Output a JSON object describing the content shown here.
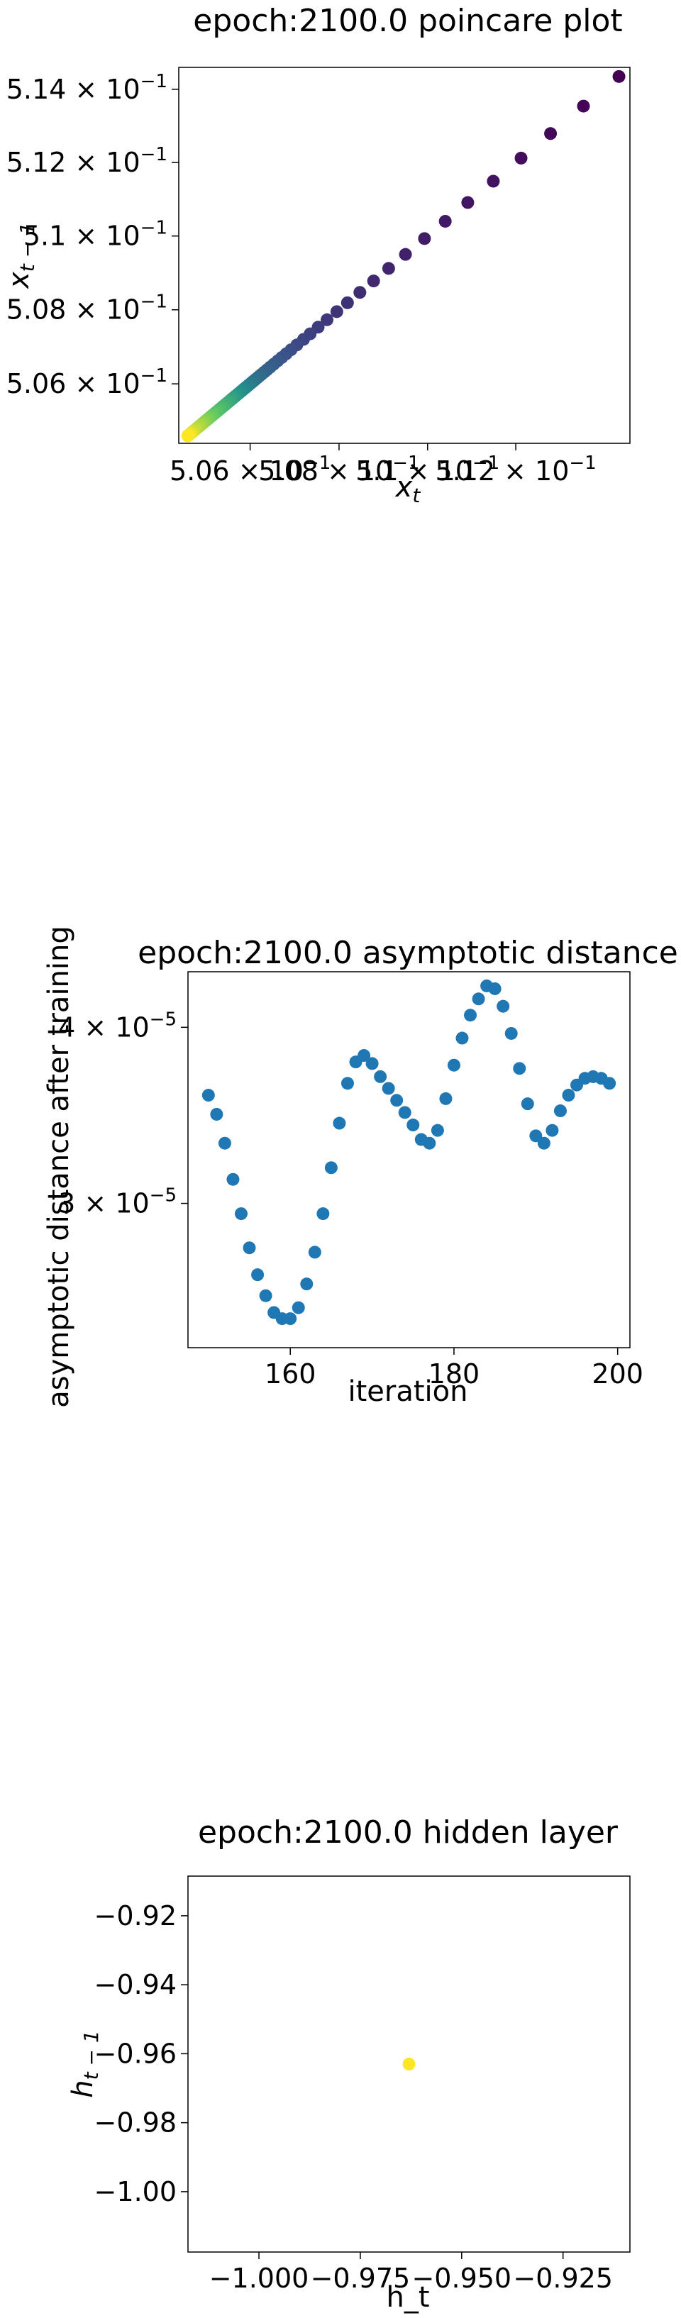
{
  "colors": {
    "viridis_start": "#440154",
    "viridis_mid": "#21918c",
    "viridis_end": "#fde725",
    "blue": "#1f77b4",
    "hidden_point": "#fde725"
  },
  "chart_data": [
    {
      "type": "scatter",
      "title": "epoch:2100.0 poincare plot",
      "xlabel": "x_t",
      "ylabel": "x_{t-1}",
      "scale": "log",
      "xlim": [
        0.5044,
        0.5146
      ],
      "ylim": [
        0.5044,
        0.5146
      ],
      "x_ticks": [
        {
          "value": 0.506,
          "label": "5.06 × 10"
        },
        {
          "value": 0.508,
          "label": "5.08 × 10"
        },
        {
          "value": 0.51,
          "label": "5.1 × 10"
        },
        {
          "value": 0.512,
          "label": "5.12 × 10"
        }
      ],
      "y_ticks": [
        {
          "value": 0.506,
          "label": "5.06 × 10"
        },
        {
          "value": 0.508,
          "label": "5.08 × 10"
        },
        {
          "value": 0.51,
          "label": "5.1 × 10"
        },
        {
          "value": 0.512,
          "label": "5.12 × 10"
        },
        {
          "value": 0.514,
          "label": "5.14 × 10"
        }
      ],
      "tick_exponent": "−1",
      "colormap": "viridis",
      "x": [
        0.51435,
        0.51354,
        0.51279,
        0.51212,
        0.51149,
        0.51091,
        0.5104,
        0.50993,
        0.5095,
        0.50912,
        0.50878,
        0.50847,
        0.50819,
        0.50795,
        0.50773,
        0.50753,
        0.50735,
        0.5072,
        0.50705,
        0.50692,
        0.50681,
        0.50671,
        0.50662,
        0.50653,
        0.50645,
        0.50638,
        0.50632,
        0.50626,
        0.50621,
        0.50616,
        0.50611,
        0.50607,
        0.50603,
        0.50599,
        0.50596,
        0.50592,
        0.50589,
        0.50586,
        0.50583,
        0.5058,
        0.50577,
        0.50574,
        0.50571,
        0.50568,
        0.50565,
        0.50562,
        0.50559,
        0.50556,
        0.50553,
        0.5055,
        0.50547,
        0.50544,
        0.50541,
        0.50538,
        0.50535,
        0.50532,
        0.50529,
        0.50526,
        0.50523,
        0.5052,
        0.50517,
        0.50514,
        0.50511,
        0.50508,
        0.50505,
        0.50502,
        0.50499,
        0.50496,
        0.50493,
        0.5049,
        0.50487,
        0.50484,
        0.50481,
        0.50478,
        0.50475,
        0.50472,
        0.5047,
        0.50468,
        0.50466,
        0.50464,
        0.50462,
        0.5046
      ],
      "y": [
        0.51435,
        0.51354,
        0.51279,
        0.51212,
        0.51149,
        0.51091,
        0.5104,
        0.50993,
        0.5095,
        0.50912,
        0.50878,
        0.50847,
        0.50819,
        0.50795,
        0.50773,
        0.50753,
        0.50735,
        0.5072,
        0.50705,
        0.50692,
        0.50681,
        0.50671,
        0.50662,
        0.50653,
        0.50645,
        0.50638,
        0.50632,
        0.50626,
        0.50621,
        0.50616,
        0.50611,
        0.50607,
        0.50603,
        0.50599,
        0.50596,
        0.50592,
        0.50589,
        0.50586,
        0.50583,
        0.5058,
        0.50577,
        0.50574,
        0.50571,
        0.50568,
        0.50565,
        0.50562,
        0.50559,
        0.50556,
        0.50553,
        0.5055,
        0.50547,
        0.50544,
        0.50541,
        0.50538,
        0.50535,
        0.50532,
        0.50529,
        0.50526,
        0.50523,
        0.5052,
        0.50517,
        0.50514,
        0.50511,
        0.50508,
        0.50505,
        0.50502,
        0.50499,
        0.50496,
        0.50493,
        0.5049,
        0.50487,
        0.50484,
        0.50481,
        0.50478,
        0.50475,
        0.50472,
        0.5047,
        0.50468,
        0.50466,
        0.50464,
        0.50462,
        0.5046
      ]
    },
    {
      "type": "scatter",
      "title": "epoch:2100.0 asymptotic distance",
      "xlabel": "iteration",
      "ylabel": "asymptotic distance after training",
      "yscale": "log",
      "xlim": [
        147.5,
        201.5
      ],
      "ylim": [
        2.37e-05,
        4.38e-05
      ],
      "x_ticks": [
        {
          "value": 160,
          "label": "160"
        },
        {
          "value": 180,
          "label": "180"
        },
        {
          "value": 200,
          "label": "200"
        }
      ],
      "y_ticks": [
        {
          "value": 3e-05,
          "label": "3 × 10"
        },
        {
          "value": 4e-05,
          "label": "4 × 10"
        }
      ],
      "tick_exponent": "−5",
      "x": [
        150,
        151,
        152,
        153,
        154,
        155,
        156,
        157,
        158,
        159,
        160,
        161,
        162,
        163,
        164,
        165,
        166,
        167,
        168,
        169,
        170,
        171,
        172,
        173,
        174,
        175,
        176,
        177,
        178,
        179,
        180,
        181,
        182,
        183,
        184,
        185,
        186,
        187,
        188,
        189,
        190,
        191,
        192,
        193,
        194,
        195,
        196,
        197,
        198,
        199
      ],
      "y": [
        3.58e-05,
        3.47e-05,
        3.31e-05,
        3.12e-05,
        2.95e-05,
        2.79e-05,
        2.67e-05,
        2.58e-05,
        2.51e-05,
        2.485e-05,
        2.485e-05,
        2.53e-05,
        2.63e-05,
        2.77e-05,
        2.95e-05,
        3.18e-05,
        3.42e-05,
        3.65e-05,
        3.78e-05,
        3.82e-05,
        3.77e-05,
        3.69e-05,
        3.62e-05,
        3.55e-05,
        3.48e-05,
        3.41e-05,
        3.33e-05,
        3.31e-05,
        3.38e-05,
        3.56e-05,
        3.76e-05,
        3.93e-05,
        4.08e-05,
        4.19e-05,
        4.28e-05,
        4.26e-05,
        4.14e-05,
        3.96e-05,
        3.74e-05,
        3.53e-05,
        3.35e-05,
        3.31e-05,
        3.38e-05,
        3.49e-05,
        3.58e-05,
        3.64e-05,
        3.68e-05,
        3.69e-05,
        3.68e-05,
        3.65e-05
      ]
    },
    {
      "type": "scatter",
      "title": "epoch:2100.0 hidden layer",
      "xlabel": "h_t",
      "ylabel": "h_{t-1}",
      "xlim": [
        -1.0175,
        -0.9085
      ],
      "ylim": [
        -1.0175,
        -0.9085
      ],
      "x_ticks": [
        {
          "value": -1.0,
          "label": "−1.000"
        },
        {
          "value": -0.975,
          "label": "−0.975"
        },
        {
          "value": -0.95,
          "label": "−0.950"
        },
        {
          "value": -0.925,
          "label": "−0.925"
        }
      ],
      "y_ticks": [
        {
          "value": -0.92,
          "label": "−0.92"
        },
        {
          "value": -0.94,
          "label": "−0.94"
        },
        {
          "value": -0.96,
          "label": "−0.96"
        },
        {
          "value": -0.98,
          "label": "−0.98"
        },
        {
          "value": -1.0,
          "label": "−1.00"
        }
      ],
      "x": [
        -0.963
      ],
      "y": [
        -0.963
      ]
    }
  ]
}
